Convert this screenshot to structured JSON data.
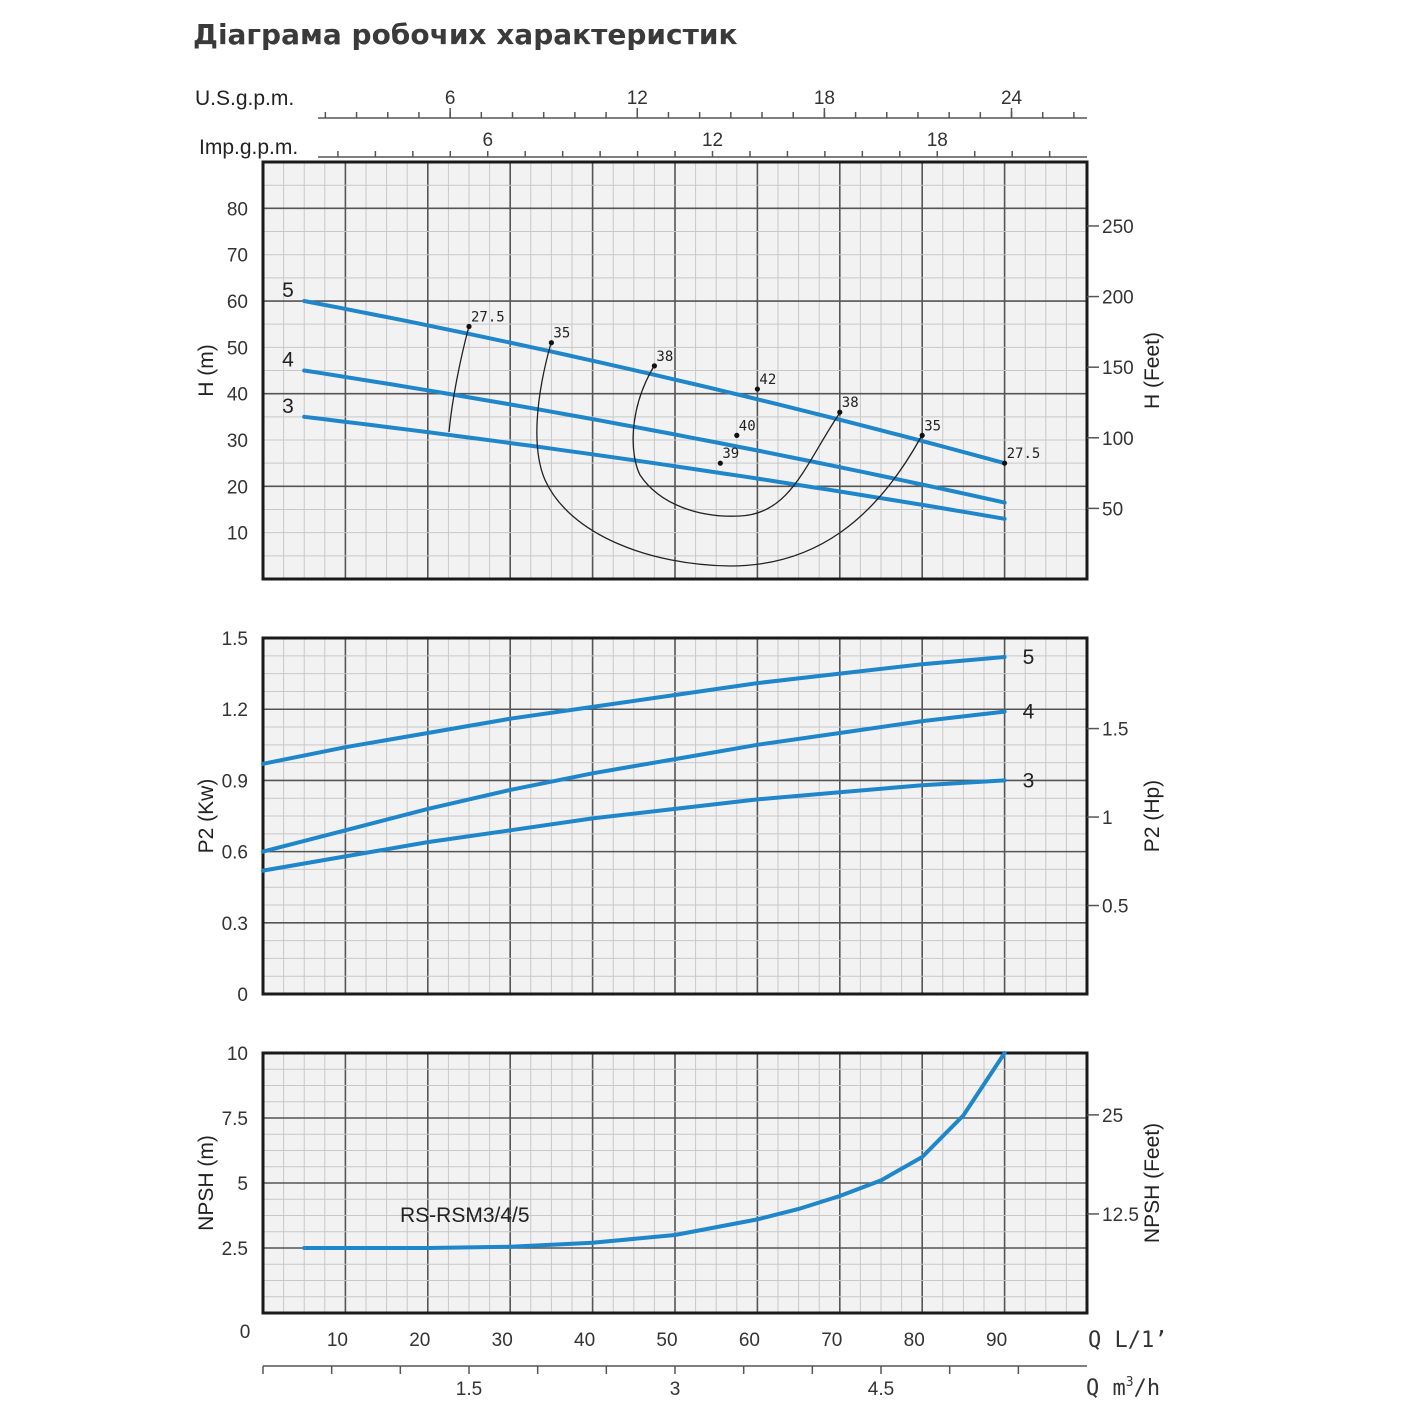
{
  "title": "Діаграма робочих характеристик",
  "colors": {
    "curve": "#1f86c9",
    "efficiency": "#222222",
    "panel_bg": "#f2f2f2"
  },
  "top_axes": {
    "usgpm": {
      "label": "U.S.g.p.m.",
      "ticks": [
        "6",
        "12",
        "18",
        "24"
      ],
      "values": [
        6,
        12,
        18,
        24
      ]
    },
    "impgpm": {
      "label": "Imp.g.p.m.",
      "ticks": [
        "6",
        "12",
        "18"
      ],
      "values": [
        6,
        12,
        18
      ]
    }
  },
  "bottom_axes": {
    "q_lmin": {
      "label": "Q L/1’",
      "ticks": [
        "0",
        "10",
        "20",
        "30",
        "40",
        "50",
        "60",
        "70",
        "80",
        "90"
      ],
      "values": [
        0,
        10,
        20,
        30,
        40,
        50,
        60,
        70,
        80,
        90
      ]
    },
    "q_m3h": {
      "label_q": "Q m",
      "label_sup": "3",
      "label_h": "/h",
      "ticks": [
        "1.5",
        "3",
        "4.5"
      ],
      "values": [
        1.5,
        3,
        4.5
      ]
    }
  },
  "chart_data": [
    {
      "id": "head",
      "type": "line",
      "xlabel": "Q L/1’",
      "ylabel": "H (m)",
      "ylabel_right": "H (Feet)",
      "xlim": [
        0,
        100
      ],
      "ylim": [
        0,
        90
      ],
      "yticks": [
        "10",
        "20",
        "30",
        "40",
        "50",
        "60",
        "70",
        "80"
      ],
      "yticks_right": [
        "50",
        "100",
        "150",
        "200",
        "250"
      ],
      "series": [
        {
          "name": "5",
          "x": [
            5,
            90
          ],
          "y": [
            60,
            25
          ]
        },
        {
          "name": "4",
          "x": [
            5,
            90
          ],
          "y": [
            45,
            16.5
          ]
        },
        {
          "name": "3",
          "x": [
            5,
            90
          ],
          "y": [
            35,
            13
          ]
        }
      ],
      "efficiency_labels": [
        {
          "text": "27.5",
          "x": 25,
          "y": 54.5
        },
        {
          "text": "35",
          "x": 35,
          "y": 51
        },
        {
          "text": "38",
          "x": 47.5,
          "y": 46
        },
        {
          "text": "42",
          "x": 60,
          "y": 41
        },
        {
          "text": "38",
          "x": 70,
          "y": 36
        },
        {
          "text": "35",
          "x": 80,
          "y": 31
        },
        {
          "text": "27.5",
          "x": 90,
          "y": 25
        },
        {
          "text": "40",
          "x": 57.5,
          "y": 31
        },
        {
          "text": "39",
          "x": 55.5,
          "y": 25
        }
      ]
    },
    {
      "id": "power",
      "type": "line",
      "xlabel": "Q L/1’",
      "ylabel": "P2 (Kw)",
      "ylabel_right": "P2 (Hp)",
      "xlim": [
        0,
        100
      ],
      "ylim": [
        0,
        1.5
      ],
      "yticks": [
        "0",
        "0.3",
        "0.6",
        "0.9",
        "1.2",
        "1.5"
      ],
      "yticks_right": [
        "0.5",
        "1",
        "1.5"
      ],
      "series": [
        {
          "name": "5",
          "x": [
            0,
            10,
            20,
            30,
            40,
            50,
            60,
            70,
            80,
            90
          ],
          "y": [
            0.97,
            1.04,
            1.1,
            1.16,
            1.21,
            1.26,
            1.31,
            1.35,
            1.39,
            1.42
          ]
        },
        {
          "name": "4",
          "x": [
            0,
            10,
            20,
            30,
            40,
            50,
            60,
            70,
            80,
            90
          ],
          "y": [
            0.6,
            0.69,
            0.78,
            0.86,
            0.93,
            0.99,
            1.05,
            1.1,
            1.15,
            1.19
          ]
        },
        {
          "name": "3",
          "x": [
            0,
            10,
            20,
            30,
            40,
            50,
            60,
            70,
            80,
            90
          ],
          "y": [
            0.52,
            0.58,
            0.64,
            0.69,
            0.74,
            0.78,
            0.82,
            0.85,
            0.88,
            0.9
          ]
        }
      ]
    },
    {
      "id": "npsh",
      "type": "line",
      "xlabel": "Q L/1’",
      "ylabel": "NPSH (m)",
      "ylabel_right": "NPSH (Feet)",
      "xlim": [
        0,
        100
      ],
      "ylim": [
        0,
        10
      ],
      "yticks": [
        "2.5",
        "5",
        "7.5",
        "10"
      ],
      "yticks_right": [
        "12.5",
        "25"
      ],
      "annotation": "RS-RSM3/4/5",
      "series": [
        {
          "name": "RS-RSM3/4/5",
          "x": [
            5,
            20,
            30,
            40,
            50,
            60,
            65,
            70,
            75,
            80,
            85,
            90
          ],
          "y": [
            2.5,
            2.5,
            2.55,
            2.7,
            3.0,
            3.6,
            4.0,
            4.5,
            5.1,
            6.0,
            7.6,
            10
          ]
        }
      ]
    }
  ]
}
